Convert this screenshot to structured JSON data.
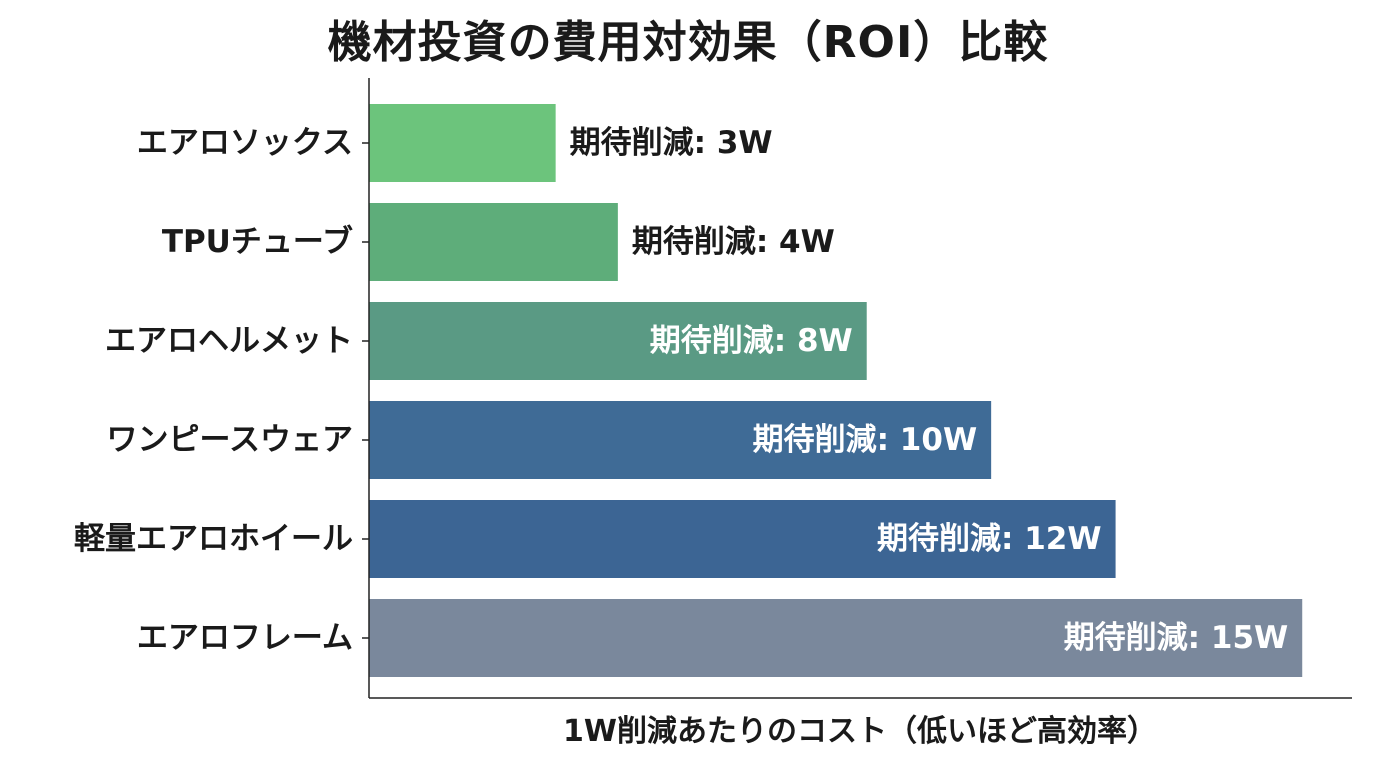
{
  "chart_data": {
    "type": "bar",
    "orientation": "horizontal",
    "title": "機材投資の費用対効果（ROI）比較",
    "xlabel": "1W削減あたりのコスト（低いほど高効率）",
    "ylabel": "",
    "categories": [
      "エアロソックス",
      "TPUチューブ",
      "エアロヘルメット",
      "ワンピースウェア",
      "軽量エアロホイール",
      "エアロフレーム"
    ],
    "values": [
      3,
      4,
      8,
      10,
      12,
      15
    ],
    "data_labels": [
      "期待削減: 3W",
      "期待削減: 4W",
      "期待削減: 8W",
      "期待削減: 10W",
      "期待削減: 12W",
      "期待削減: 15W"
    ],
    "bar_colors": [
      "#6cc47c",
      "#5ead7a",
      "#5a9a84",
      "#3f6b96",
      "#3c6594",
      "#7a889c"
    ],
    "label_colors": [
      "#1a1a1a",
      "#1a1a1a",
      "#ffffff",
      "#ffffff",
      "#ffffff",
      "#ffffff"
    ],
    "xlim": [
      0,
      15.8
    ],
    "grid": false,
    "legend": "none"
  }
}
